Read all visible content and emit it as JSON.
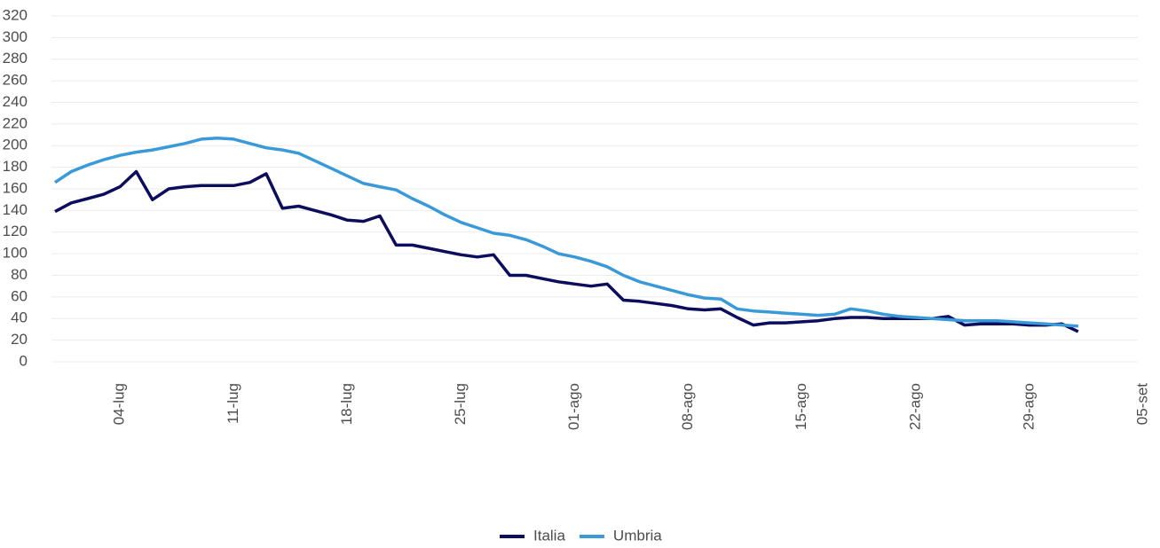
{
  "chart_data": {
    "type": "line",
    "x": [
      "30-giu",
      "01-lug",
      "02-lug",
      "03-lug",
      "04-lug",
      "05-lug",
      "06-lug",
      "07-lug",
      "08-lug",
      "09-lug",
      "10-lug",
      "11-lug",
      "12-lug",
      "13-lug",
      "14-lug",
      "15-lug",
      "16-lug",
      "17-lug",
      "18-lug",
      "19-lug",
      "20-lug",
      "21-lug",
      "22-lug",
      "23-lug",
      "24-lug",
      "25-lug",
      "26-lug",
      "27-lug",
      "28-lug",
      "29-lug",
      "30-lug",
      "31-lug",
      "01-ago",
      "02-ago",
      "03-ago",
      "04-ago",
      "05-ago",
      "06-ago",
      "07-ago",
      "08-ago",
      "09-ago",
      "10-ago",
      "11-ago",
      "12-ago",
      "13-ago",
      "14-ago",
      "15-ago",
      "16-ago",
      "17-ago",
      "18-ago",
      "19-ago",
      "20-ago",
      "21-ago",
      "22-ago",
      "23-ago",
      "24-ago",
      "25-ago",
      "26-ago",
      "27-ago",
      "28-ago",
      "29-ago",
      "30-ago",
      "31-ago",
      "01-set"
    ],
    "series": [
      {
        "name": "Italia",
        "color": "#0d0d5e",
        "values": [
          139,
          147,
          151,
          155,
          162,
          176,
          150,
          160,
          162,
          163,
          163,
          163,
          166,
          174,
          142,
          144,
          140,
          136,
          131,
          130,
          135,
          108,
          108,
          105,
          102,
          99,
          97,
          99,
          80,
          80,
          77,
          74,
          72,
          70,
          72,
          57,
          56,
          54,
          52,
          49,
          48,
          49,
          41,
          34,
          36,
          36,
          37,
          38,
          40,
          41,
          41,
          40,
          40,
          40,
          40,
          42,
          34,
          35,
          35,
          35,
          34,
          34,
          35,
          28
        ]
      },
      {
        "name": "Umbria",
        "color": "#3a9ad9",
        "values": [
          166,
          176,
          182,
          187,
          191,
          194,
          196,
          199,
          202,
          206,
          207,
          206,
          202,
          198,
          196,
          193,
          186,
          179,
          172,
          165,
          162,
          159,
          151,
          144,
          136,
          129,
          124,
          119,
          117,
          113,
          107,
          100,
          97,
          93,
          88,
          80,
          74,
          70,
          66,
          62,
          59,
          58,
          49,
          47,
          46,
          45,
          44,
          43,
          44,
          49,
          47,
          44,
          42,
          41,
          40,
          39,
          38,
          38,
          38,
          37,
          36,
          35,
          34,
          33
        ]
      }
    ],
    "xlim": [
      "30-giu",
      "05-set"
    ],
    "xticks": [
      "04-lug",
      "11-lug",
      "18-lug",
      "25-lug",
      "01-ago",
      "08-ago",
      "15-ago",
      "22-ago",
      "29-ago",
      "05-set"
    ],
    "ylim": [
      0,
      320
    ],
    "yticks": [
      0,
      20,
      40,
      60,
      80,
      100,
      120,
      140,
      160,
      180,
      200,
      220,
      240,
      260,
      280,
      300,
      320
    ],
    "grid": true,
    "legend": "bottom"
  }
}
